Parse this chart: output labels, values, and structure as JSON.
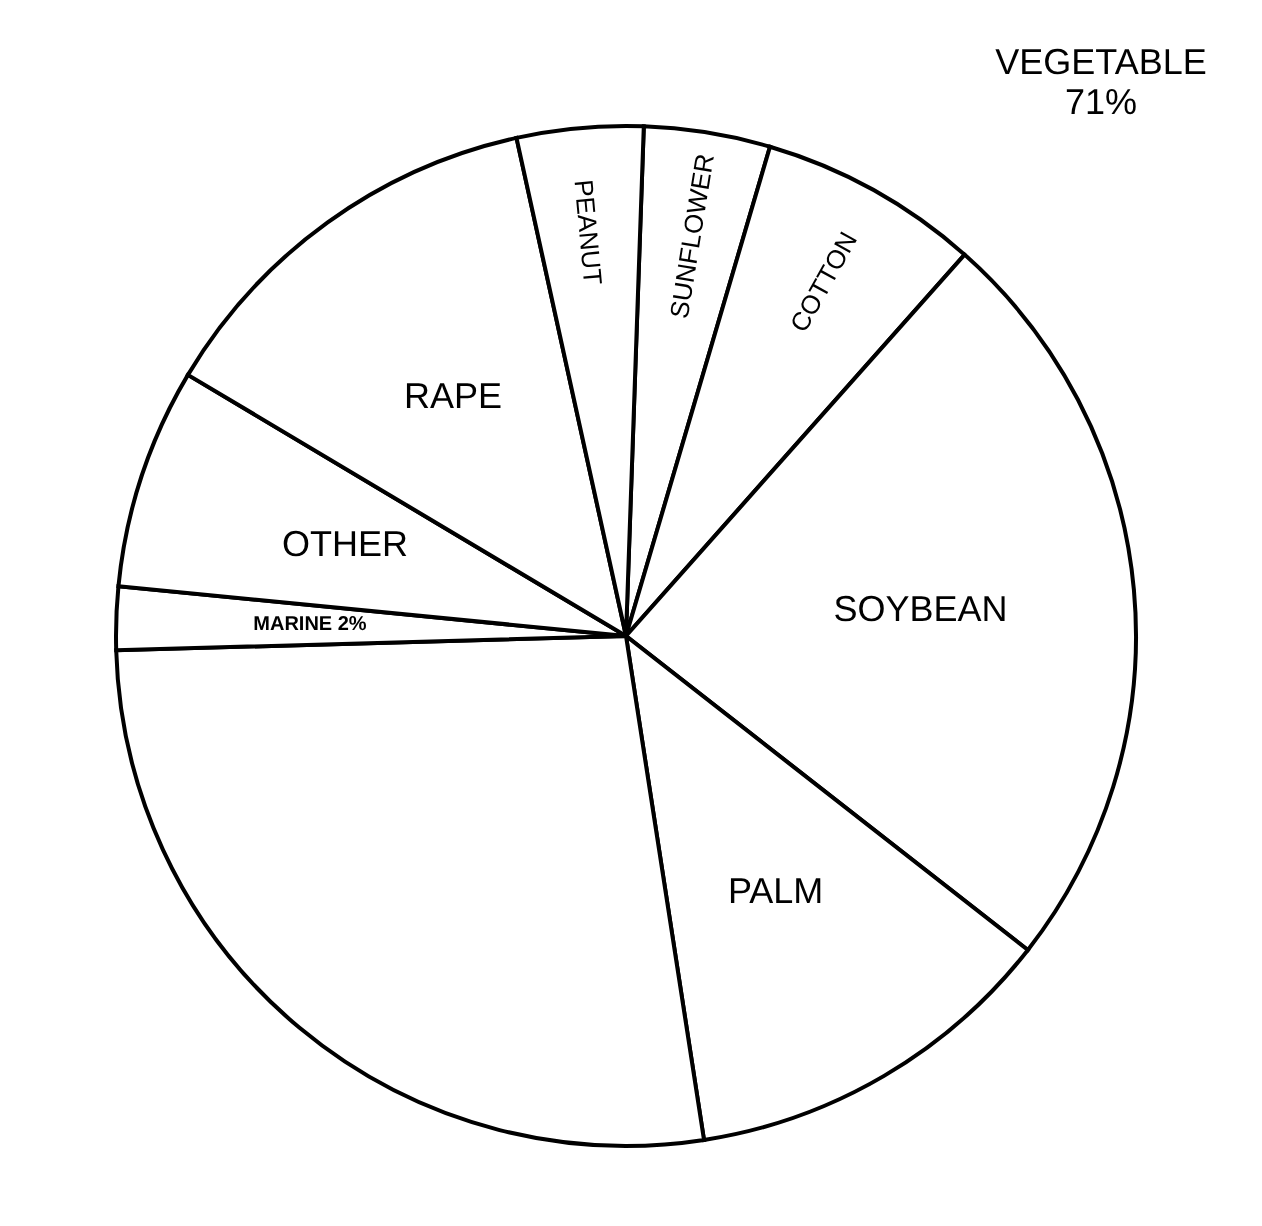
{
  "chart_data": {
    "type": "pie",
    "categories": [
      "SUNFLOWER",
      "COTTON",
      "SOYBEAN",
      "PALM",
      null,
      "MARINE",
      "OTHER",
      "RAPE",
      "PEANUT"
    ],
    "values": [
      4,
      7,
      24,
      12,
      27,
      2,
      7,
      13,
      4
    ],
    "value_labels": [
      null,
      null,
      null,
      null,
      null,
      "2%",
      null,
      null,
      null
    ],
    "colors": [
      "#ffffff",
      "#ffffff",
      "#ffffff",
      "#ffffff",
      "#ffffff",
      "#ffffff",
      "#ffffff",
      "#ffffff",
      "#ffffff"
    ],
    "annotations": [
      "VEGETABLE\n71%"
    ]
  }
}
